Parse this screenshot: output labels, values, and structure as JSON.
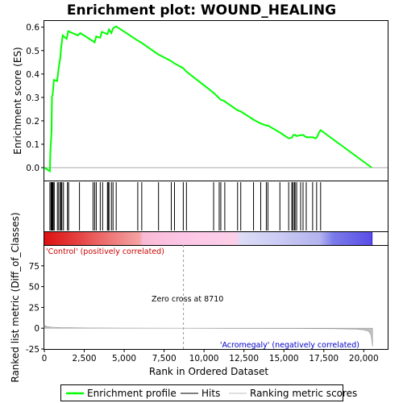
{
  "chart_data": {
    "type": "line",
    "title": "Enrichment plot: WOUND_HEALING",
    "xlabel": "Rank in Ordered Dataset",
    "es_ylabel": "Enrichment score (ES)",
    "metric_ylabel": "Ranked list metric (Diff_of_Classes)",
    "xlim": [
      0,
      21500
    ],
    "es_ylim": [
      -0.055,
      0.63
    ],
    "metric_ylim": [
      -25,
      100
    ],
    "x_ticks": [
      0,
      2500,
      5000,
      7500,
      10000,
      12500,
      15000,
      17500,
      20000
    ],
    "x_tick_labels": [
      "0",
      "2,500",
      "5,000",
      "7,500",
      "10,000",
      "12,500",
      "15,000",
      "17,500",
      "20,000"
    ],
    "es_ticks": [
      0.0,
      0.1,
      0.2,
      0.3,
      0.4,
      0.5,
      0.6
    ],
    "es_tick_labels": [
      "0.0",
      "0.1",
      "0.2",
      "0.3",
      "0.4",
      "0.5",
      "0.6"
    ],
    "metric_ticks": [
      -25,
      0,
      25,
      50,
      75
    ],
    "metric_tick_labels": [
      "-25",
      "0",
      "25",
      "50",
      "75"
    ],
    "zero_cross_rank": 8710,
    "zero_cross_label": "Zero cross at 8710",
    "positive_label": "'Control' (positively correlated)",
    "negative_label": "'Acromegaly' (negatively correlated)",
    "total_ranks": 20550,
    "series": [
      {
        "name": "Enrichment profile",
        "color": "#00ff00",
        "x": [
          0,
          350,
          380,
          450,
          480,
          520,
          600,
          800,
          900,
          1000,
          1050,
          1150,
          1400,
          1500,
          2100,
          2250,
          3050,
          3150,
          3250,
          3500,
          3600,
          3950,
          4050,
          4200,
          4300,
          4500,
          5800,
          6050,
          7100,
          7950,
          8150,
          8700,
          8900,
          10600,
          10900,
          11050,
          11250,
          12100,
          12300,
          13100,
          13500,
          13900,
          14000,
          14500,
          14800,
          15300,
          15500,
          15600,
          15700,
          15800,
          16000,
          16200,
          16400,
          16800,
          17000,
          17100,
          17200,
          17300,
          20500
        ],
        "y": [
          0.0,
          -0.015,
          0.07,
          0.15,
          0.305,
          0.31,
          0.375,
          0.37,
          0.425,
          0.47,
          0.51,
          0.565,
          0.55,
          0.583,
          0.565,
          0.575,
          0.54,
          0.535,
          0.56,
          0.555,
          0.58,
          0.57,
          0.59,
          0.575,
          0.595,
          0.603,
          0.545,
          0.535,
          0.485,
          0.455,
          0.445,
          0.425,
          0.41,
          0.32,
          0.3,
          0.29,
          0.285,
          0.245,
          0.24,
          0.205,
          0.19,
          0.18,
          0.18,
          0.16,
          0.148,
          0.125,
          0.128,
          0.14,
          0.14,
          0.135,
          0.138,
          0.14,
          0.13,
          0.13,
          0.125,
          0.133,
          0.15,
          0.16,
          0.0
        ]
      },
      {
        "name": "Hits",
        "color": "#000000",
        "x": [
          350,
          420,
          460,
          500,
          540,
          600,
          620,
          820,
          900,
          1000,
          1050,
          1100,
          1200,
          1450,
          1520,
          2200,
          3050,
          3150,
          3250,
          3500,
          3650,
          3950,
          4000,
          4050,
          4200,
          4300,
          4500,
          5850,
          6100,
          7150,
          7950,
          8150,
          8700,
          8900,
          10600,
          10950,
          11050,
          11300,
          12100,
          12300,
          13100,
          13550,
          13900,
          14000,
          14750,
          15300,
          15500,
          15550,
          15650,
          15700,
          15800,
          16050,
          16200,
          16400,
          16800,
          17050,
          17300
        ]
      },
      {
        "name": "Ranking metric scores",
        "color": "#c0c0c0",
        "x": [
          0,
          80,
          200,
          500,
          1000,
          2000,
          3000,
          5000,
          8710,
          12000,
          16000,
          18000,
          19500,
          20000,
          20300,
          20450,
          20500,
          20550
        ],
        "y": [
          4,
          2.5,
          1.8,
          1.2,
          0.8,
          0.5,
          0.3,
          0.15,
          0,
          -0.15,
          -0.4,
          -0.6,
          -1.2,
          -2,
          -3.5,
          -8,
          -14,
          -22
        ]
      }
    ],
    "heatmap_stops": [
      {
        "at": 0.0,
        "color": "#dd1111"
      },
      {
        "at": 0.1,
        "color": "#e54040"
      },
      {
        "at": 0.2,
        "color": "#ee7777"
      },
      {
        "at": 0.29,
        "color": "#f4a3a3"
      },
      {
        "at": 0.3,
        "color": "#f9b9d5"
      },
      {
        "at": 0.42,
        "color": "#fcc6e6"
      },
      {
        "at": 0.58,
        "color": "#fccfe8"
      },
      {
        "at": 0.6,
        "color": "#dcdcf6"
      },
      {
        "at": 0.72,
        "color": "#cacaf4"
      },
      {
        "at": 0.84,
        "color": "#b3b3ef"
      },
      {
        "at": 0.88,
        "color": "#7b7bea"
      },
      {
        "at": 0.995,
        "color": "#5a4fe6"
      },
      {
        "at": 1.0,
        "color": "#3a1fd8"
      }
    ]
  },
  "legend": {
    "items": [
      {
        "label": "Enrichment profile",
        "color": "#00ff00"
      },
      {
        "label": "Hits",
        "color": "#000000"
      },
      {
        "label": "Ranking metric scores",
        "color": "#c0c0c0"
      }
    ]
  }
}
